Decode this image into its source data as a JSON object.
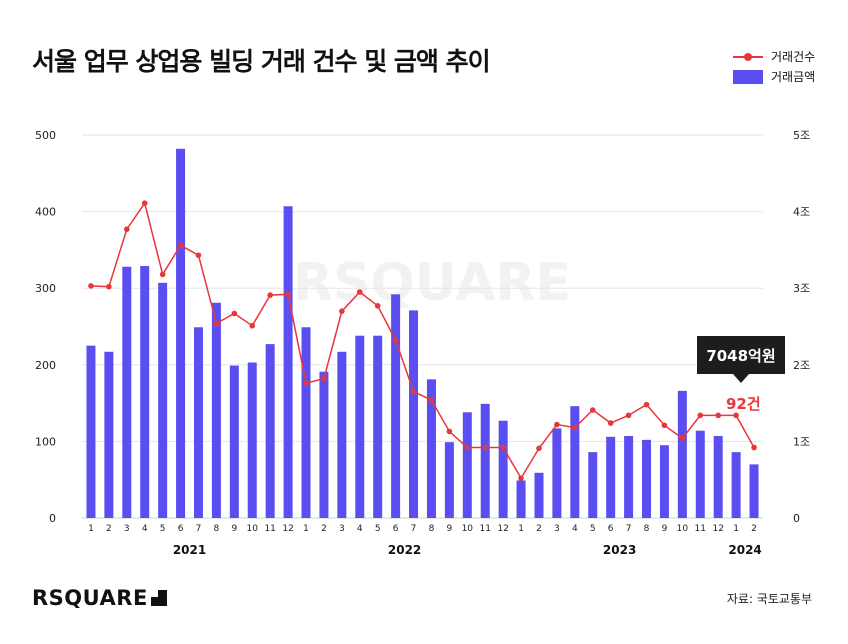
{
  "title": "서울 업무 상업용 빌딩 거래 건수 및 금액 추이",
  "legend": {
    "count": "거래건수",
    "amount": "거래금액"
  },
  "source": "자료: 국토교통부",
  "logo": "RSQUARE",
  "callout": {
    "amount": "7048억원",
    "count": "92건"
  },
  "colors": {
    "bar": "#5a4ef0",
    "line": "#e8373a",
    "grid": "#e6e6e6"
  },
  "chart_data": {
    "type": "bar",
    "title": "서울 업무 상업용 빌딩 거래 건수 및 금액 추이",
    "x": [
      "1",
      "2",
      "3",
      "4",
      "5",
      "6",
      "7",
      "8",
      "9",
      "10",
      "11",
      "12",
      "1",
      "2",
      "3",
      "4",
      "5",
      "6",
      "7",
      "8",
      "9",
      "10",
      "11",
      "12",
      "1",
      "2",
      "3",
      "4",
      "5",
      "6",
      "7",
      "8",
      "9",
      "10",
      "11",
      "12",
      "1",
      "2"
    ],
    "years": [
      {
        "label": "2021",
        "start": 0,
        "end": 11
      },
      {
        "label": "2022",
        "start": 12,
        "end": 23
      },
      {
        "label": "2023",
        "start": 24,
        "end": 35
      },
      {
        "label": "2024",
        "start": 36,
        "end": 37
      }
    ],
    "left_axis": {
      "ylim": [
        0,
        500
      ],
      "ticks": [
        "0",
        "100",
        "200",
        "300",
        "400",
        "500"
      ]
    },
    "right_axis": {
      "ylim": [
        0,
        5
      ],
      "ticks": [
        "0",
        "1조",
        "2조",
        "3조",
        "4조",
        "5조"
      ]
    },
    "grid": true,
    "legend_position": "top-right",
    "series": [
      {
        "name": "거래금액",
        "type": "bar",
        "axis": "right",
        "values": [
          2.25,
          2.17,
          3.28,
          3.29,
          3.07,
          4.82,
          2.49,
          2.81,
          1.99,
          2.03,
          2.27,
          4.07,
          2.49,
          1.91,
          2.17,
          2.38,
          2.38,
          2.92,
          2.71,
          1.81,
          0.99,
          1.38,
          1.49,
          1.27,
          0.49,
          0.59,
          1.17,
          1.46,
          0.86,
          1.06,
          1.07,
          1.02,
          0.95,
          1.66,
          1.14,
          1.07,
          0.86,
          0.7
        ]
      },
      {
        "name": "거래건수",
        "type": "line",
        "axis": "left",
        "values": [
          303,
          302,
          377,
          411,
          318,
          356,
          343,
          254,
          267,
          251,
          291,
          292,
          176,
          182,
          270,
          295,
          277,
          232,
          165,
          154,
          113,
          92,
          92,
          92,
          52,
          91,
          122,
          118,
          141,
          124,
          134,
          148,
          121,
          104,
          134,
          134,
          134,
          92
        ]
      }
    ]
  }
}
